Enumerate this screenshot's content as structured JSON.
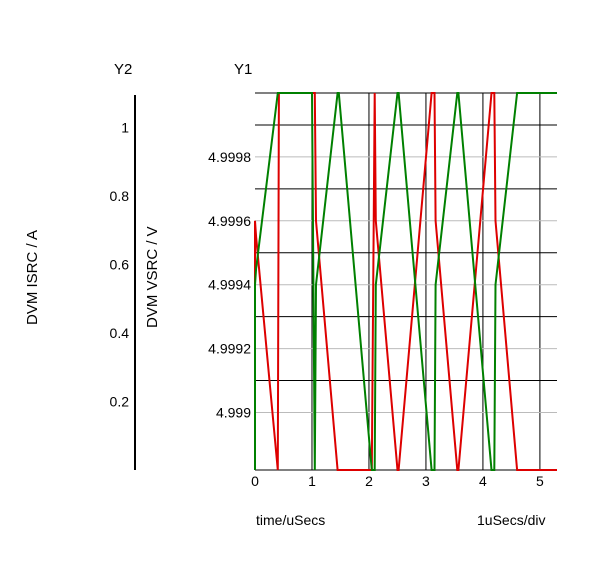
{
  "chart_data": {
    "type": "line",
    "y1": {
      "label": "Y1",
      "axis_title": "DVM VSRC / V",
      "ylim": [
        4.99882,
        5.0
      ],
      "ticks": [
        4.999,
        4.9992,
        4.9994,
        4.9996,
        4.9998
      ],
      "tick_labels": [
        "4.999",
        "4.9992",
        "4.9994",
        "4.9996",
        "4.9998"
      ]
    },
    "y2": {
      "label": "Y2",
      "axis_title": "DVM ISRC / A",
      "ylim": [
        0,
        1.1
      ],
      "ticks": [
        0.2,
        0.4,
        0.6,
        0.8,
        1
      ],
      "tick_labels": [
        "0.2",
        "0.4",
        "0.6",
        "0.8",
        "1"
      ]
    },
    "x": {
      "label": "time/uSecs",
      "per_div": "1uSecs/div",
      "xlim": [
        0,
        5.3
      ],
      "ticks": [
        0,
        1,
        2,
        3,
        4,
        5
      ],
      "tick_labels": [
        "0",
        "1",
        "2",
        "3",
        "4",
        "5"
      ]
    },
    "grid": true,
    "series": [
      {
        "color": "#dd0000",
        "x": [
          0,
          0,
          0.02,
          0.4,
          0.42,
          1.0,
          1.05,
          1.07,
          1.45,
          1.47,
          2.05,
          2.1,
          2.12,
          2.5,
          2.52,
          3.1,
          3.15,
          3.17,
          3.55,
          3.57,
          4.15,
          4.2,
          4.22,
          4.6,
          4.62,
          5.3
        ],
        "y": [
          4.99882,
          4.9996,
          4.99955,
          4.99882,
          5.0,
          5.0,
          5.0,
          4.9996,
          4.99882,
          4.99882,
          4.99882,
          5.0,
          4.9996,
          4.99882,
          4.99882,
          5.0,
          5.0,
          4.9996,
          4.99882,
          4.99882,
          5.0,
          5.0,
          4.9996,
          4.99882,
          4.99882,
          4.99882
        ]
      },
      {
        "color": "#008000",
        "x": [
          0,
          0,
          0.02,
          0.4,
          0.42,
          1.0,
          1.05,
          1.07,
          1.45,
          1.47,
          2.05,
          2.1,
          2.12,
          2.5,
          2.52,
          3.1,
          3.15,
          3.17,
          3.55,
          3.57,
          4.15,
          4.2,
          4.22,
          4.6,
          4.62,
          5.3
        ],
        "y": [
          4.99882,
          4.9994,
          4.99945,
          5.0,
          5.0,
          5.0,
          4.99882,
          4.9994,
          5.0,
          5.0,
          4.99882,
          4.99882,
          4.9994,
          5.0,
          5.0,
          4.99882,
          4.99882,
          4.9994,
          5.0,
          5.0,
          4.99882,
          4.99882,
          4.9994,
          5.0,
          5.0,
          5.0
        ]
      }
    ]
  }
}
